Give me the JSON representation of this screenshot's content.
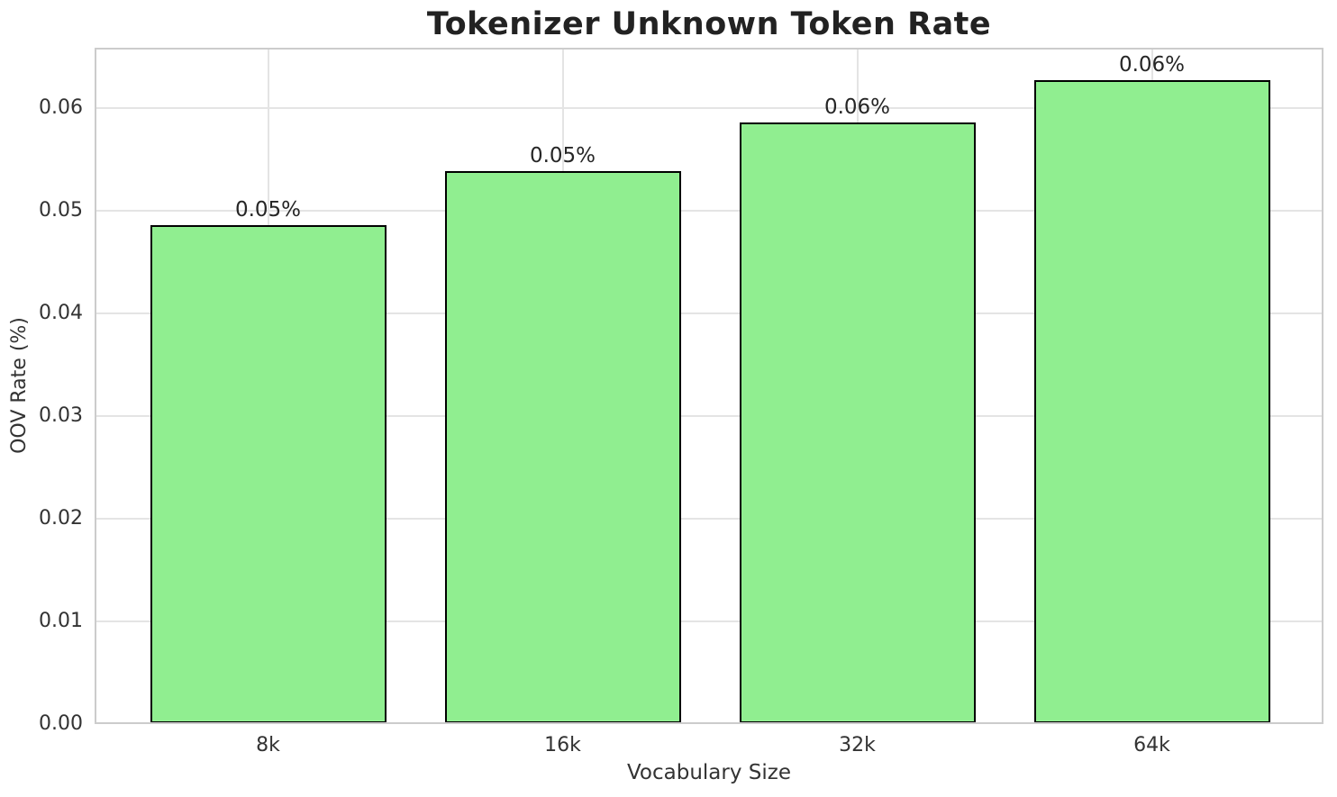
{
  "chart_data": {
    "type": "bar",
    "title": "Tokenizer Unknown Token Rate",
    "xlabel": "Vocabulary Size",
    "ylabel": "OOV Rate (%)",
    "categories": [
      "8k",
      "16k",
      "32k",
      "64k"
    ],
    "values": [
      0.0486,
      0.0539,
      0.0586,
      0.0627
    ],
    "bar_labels": [
      "0.05%",
      "0.05%",
      "0.06%",
      "0.06%"
    ],
    "yticks": [
      0,
      0.01,
      0.02,
      0.03,
      0.04,
      0.05,
      0.06
    ],
    "ytick_labels": [
      "0.00",
      "0.01",
      "0.02",
      "0.03",
      "0.04",
      "0.05",
      "0.06"
    ],
    "ylim": [
      0,
      0.0659
    ],
    "grid": true,
    "legend_position": "none",
    "colors": {
      "bar_fill": "#90EE90",
      "bar_edge": "#000000",
      "grid": "#e4e4e4",
      "spine": "#cccccc",
      "text": "#262626",
      "background": "#ffffff"
    }
  }
}
